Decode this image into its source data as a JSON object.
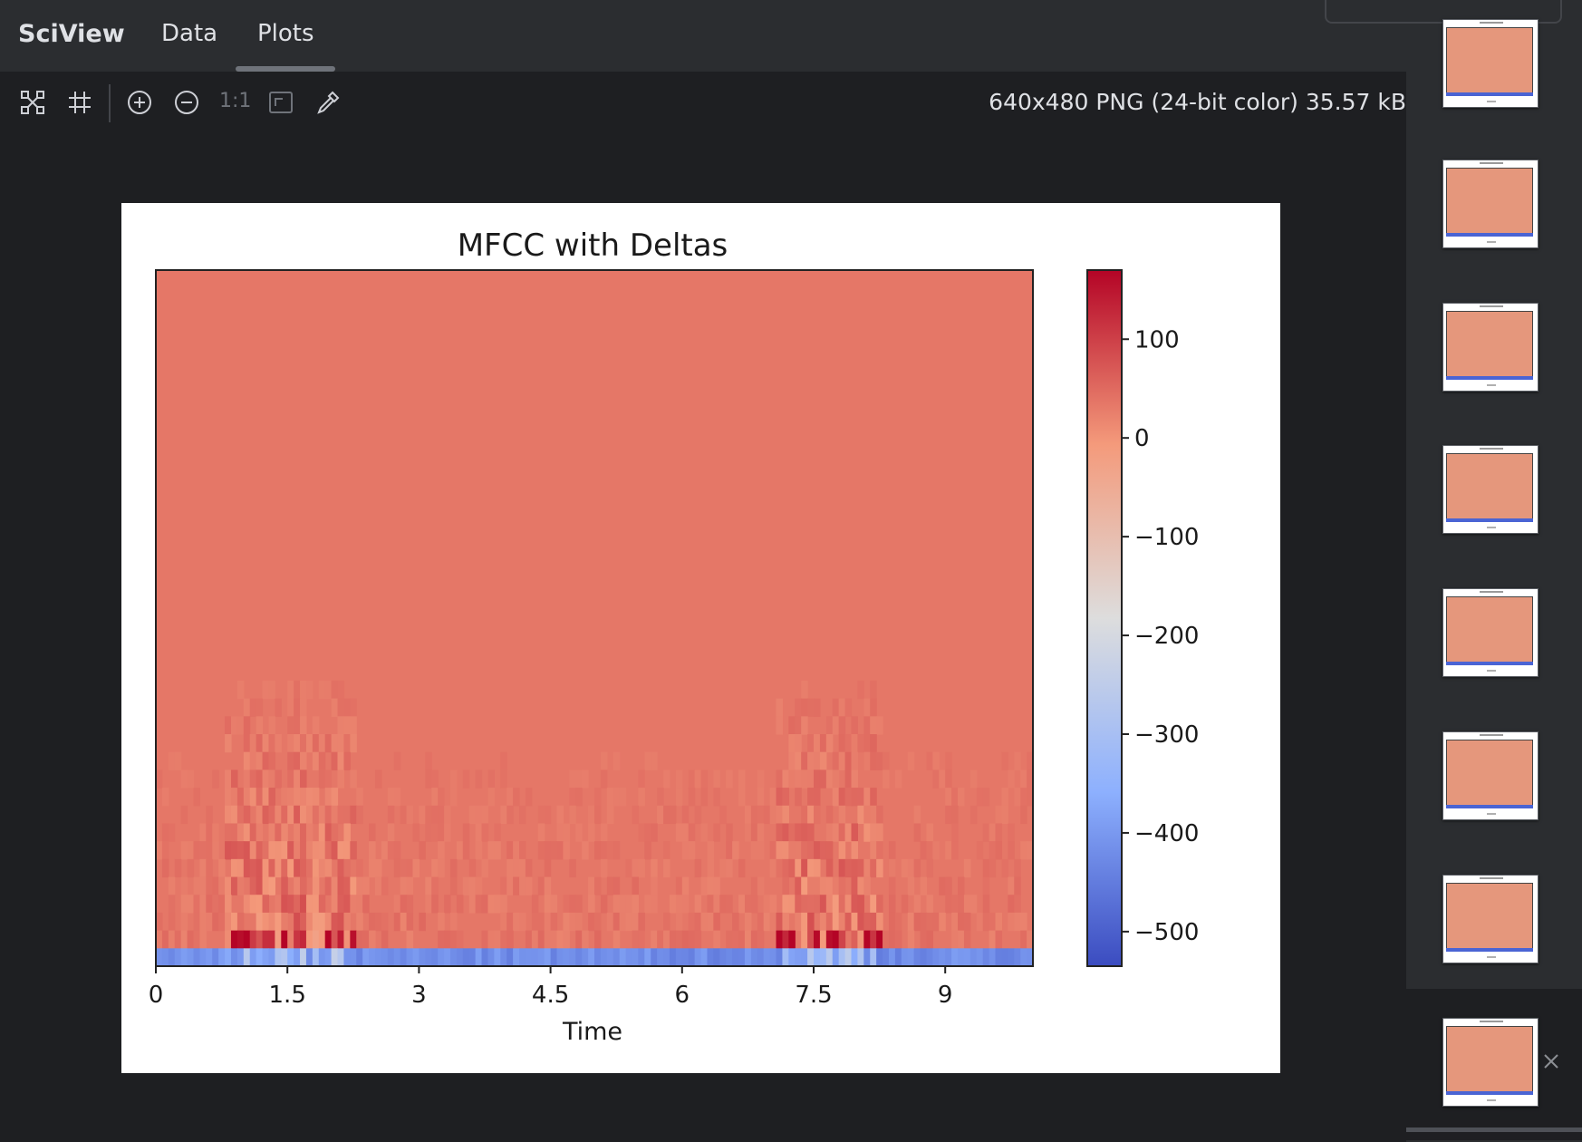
{
  "app": {
    "title": "SciView",
    "tabs": [
      {
        "label": "Data",
        "active": false
      },
      {
        "label": "Plots",
        "active": true
      }
    ]
  },
  "toolbar": {
    "buttons": [
      {
        "name": "fit-content",
        "icon": "fit-content-icon"
      },
      {
        "name": "grid",
        "icon": "grid-icon"
      },
      {
        "name": "zoom-in",
        "icon": "zoom-in-icon"
      },
      {
        "name": "zoom-out",
        "icon": "zoom-out-icon"
      },
      {
        "name": "actual-size",
        "icon": "actual-size-icon"
      },
      {
        "name": "fit-window",
        "icon": "fit-window-icon"
      },
      {
        "name": "color-picker",
        "icon": "eyedropper-icon"
      }
    ],
    "ratio_label": "1:1",
    "image_info": "640x480 PNG (24-bit color) 35.57 kB"
  },
  "thumbnails": {
    "count": 8,
    "selected_index": 7
  },
  "chart_data": {
    "type": "heatmap",
    "title": "MFCC with Deltas",
    "xlabel": "Time",
    "ylabel": "",
    "xlim": [
      0,
      10.0
    ],
    "x_ticks": [
      0,
      1.5,
      3,
      4.5,
      6,
      7.5,
      9
    ],
    "x_tick_labels": [
      "0",
      "1.5",
      "3",
      "4.5",
      "6",
      "7.5",
      "9"
    ],
    "colorbar": {
      "range": [
        -535,
        170
      ],
      "ticks": [
        100,
        0,
        -100,
        -200,
        -300,
        -400,
        -500
      ],
      "tick_labels": [
        "100",
        "0",
        "−100",
        "−200",
        "−300",
        "−400",
        "−500"
      ],
      "colormap": "coolwarm"
    },
    "background_value": 35,
    "bottom_row_value": -450,
    "active_time_ranges": [
      [
        0.8,
        2.3
      ],
      [
        7.1,
        8.3
      ]
    ],
    "colors": {
      "cmap_low": "#3b4cc0",
      "cmap_mid": "#dddddd",
      "cmap_high": "#b40426"
    }
  }
}
